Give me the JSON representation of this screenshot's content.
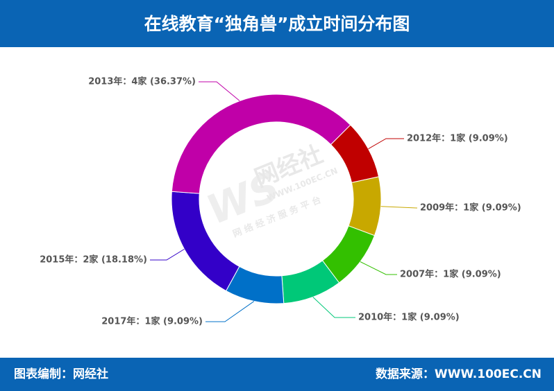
{
  "chart_data": {
    "type": "pie",
    "title": "在线教育“独角兽”成立时间分布图",
    "values": [
      1,
      1,
      1,
      1,
      1,
      2,
      4
    ],
    "value_labels": [
      "2012年：1家 (9.09%)",
      "2009年：1家 (9.09%)",
      "2007年：1家 (9.09%)",
      "2010年：1家 (9.09%)",
      "2017年：1家 (9.09%)",
      "2015年：2家 (18.18%)",
      "2013年：4家 (36.37%)"
    ],
    "colors": [
      "#c00000",
      "#c8a800",
      "#33c000",
      "#00c878",
      "#0070c8",
      "#3300c8",
      "#c000a8"
    ],
    "watermark": {
      "brand": "网经社",
      "url": "WWW.100EC.CN",
      "slogan": "网 络 经 济 服 务 平 台"
    },
    "footer": {
      "left": "图表编制：网经社",
      "right": "数据来源：WWW.100EC.CN"
    }
  }
}
